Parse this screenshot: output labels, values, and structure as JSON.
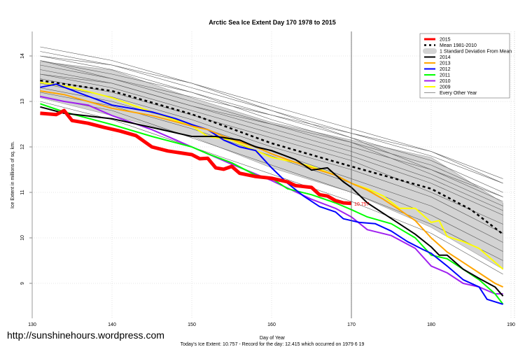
{
  "chart_data": {
    "type": "line",
    "title": "Arctic Sea Ice Extent Day 170 1978 to 2015",
    "xlabel": "Day of Year",
    "ylabel": "Ice Extent in millions of sq. km.",
    "subtitle": "Today's Ice Extent: 10.757  - Record for the day: 12.415 which occurred on 1979 6 19",
    "xlim": [
      130,
      190
    ],
    "ylim": [
      8.3,
      14.5
    ],
    "xticks": [
      130,
      140,
      150,
      160,
      170,
      180,
      190
    ],
    "yticks": [
      9,
      10,
      11,
      12,
      13,
      14
    ],
    "grid": true,
    "legend_position": "top-right",
    "marker_day": 170,
    "end_label": "10.757",
    "sd_band": {
      "name": "1 Standard Deviation From Mean",
      "color": "#d3d3d3",
      "x": [
        131,
        140,
        150,
        160,
        170,
        180,
        189
      ],
      "upper": [
        13.88,
        13.69,
        13.08,
        12.54,
        12.15,
        11.77,
        10.77
      ],
      "lower": [
        13.08,
        12.69,
        12.23,
        11.54,
        11.0,
        10.23,
        9.31
      ]
    },
    "mean": {
      "name": "Mean 1981-2010",
      "color": "#000000",
      "x": [
        131,
        140,
        150,
        160,
        170,
        180,
        185,
        189
      ],
      "y": [
        13.46,
        13.23,
        12.72,
        12.08,
        11.57,
        11.08,
        10.62,
        10.08
      ]
    },
    "other_years": {
      "name": "Every Other Year",
      "color": "#555555",
      "x": [
        131,
        140,
        150,
        160,
        170,
        180,
        189
      ],
      "lines": [
        [
          14.2,
          13.9,
          13.4,
          12.9,
          12.4,
          11.9,
          11.3
        ],
        [
          14.1,
          13.8,
          13.3,
          12.8,
          12.3,
          11.8,
          11.2
        ],
        [
          14.0,
          13.7,
          13.2,
          12.7,
          12.2,
          11.7,
          11.0
        ],
        [
          13.9,
          13.6,
          13.2,
          12.6,
          12.1,
          11.6,
          10.9
        ],
        [
          13.8,
          13.5,
          13.0,
          12.5,
          12.0,
          11.5,
          10.8
        ],
        [
          13.7,
          13.4,
          12.9,
          12.4,
          11.9,
          11.3,
          10.6
        ],
        [
          13.6,
          13.3,
          12.8,
          12.3,
          11.8,
          11.2,
          10.5
        ],
        [
          13.5,
          13.2,
          12.7,
          12.2,
          11.7,
          11.0,
          10.3
        ],
        [
          13.4,
          13.1,
          12.6,
          12.0,
          11.5,
          10.9,
          10.1
        ],
        [
          13.3,
          13.0,
          12.5,
          11.9,
          11.3,
          10.7,
          9.9
        ],
        [
          13.2,
          12.9,
          12.4,
          11.8,
          11.2,
          10.5,
          9.7
        ],
        [
          13.1,
          12.8,
          12.2,
          11.6,
          11.0,
          10.3,
          9.5
        ],
        [
          13.0,
          12.6,
          12.0,
          11.4,
          10.8,
          10.1,
          9.2
        ],
        [
          13.9,
          13.5,
          13.1,
          12.7,
          12.3,
          11.9,
          11.2
        ],
        [
          14.0,
          13.8,
          13.4,
          12.8,
          12.2,
          11.5,
          10.9
        ],
        [
          13.6,
          13.4,
          12.9,
          12.5,
          12.1,
          11.4,
          10.7
        ]
      ]
    },
    "series": [
      {
        "name": "2009",
        "color": "#ffff00",
        "x": [
          131,
          135,
          140,
          145,
          150,
          152,
          155,
          158,
          160,
          163,
          165,
          168,
          170,
          172,
          174,
          176,
          178,
          180,
          181,
          182,
          184,
          186,
          189
        ],
        "y": [
          13.42,
          13.31,
          13.08,
          12.77,
          12.46,
          12.23,
          12.15,
          11.92,
          11.77,
          11.66,
          11.57,
          11.38,
          11.2,
          11.08,
          10.92,
          10.65,
          10.65,
          10.34,
          10.38,
          10.03,
          9.92,
          9.77,
          9.31
        ]
      },
      {
        "name": "2010",
        "color": "#a020f0",
        "x": [
          131,
          134,
          137,
          140,
          145,
          150,
          155,
          160,
          165,
          168,
          170,
          172,
          175,
          178,
          180,
          182,
          184,
          186,
          188,
          189
        ],
        "y": [
          13.11,
          13.0,
          12.92,
          12.69,
          12.38,
          12.0,
          11.62,
          11.26,
          10.85,
          10.65,
          10.46,
          10.18,
          10.05,
          9.77,
          9.38,
          9.23,
          9.0,
          8.92,
          8.77,
          8.77
        ]
      },
      {
        "name": "2011",
        "color": "#00ff00",
        "x": [
          131,
          134,
          140,
          145,
          150,
          152,
          155,
          158,
          160,
          162,
          165,
          168,
          170,
          172,
          175,
          178,
          180,
          182,
          184,
          186,
          188,
          189
        ],
        "y": [
          12.95,
          12.77,
          12.49,
          12.23,
          12.0,
          11.85,
          11.65,
          11.38,
          11.31,
          11.08,
          10.95,
          10.77,
          10.62,
          10.46,
          10.31,
          10.0,
          9.62,
          9.54,
          9.31,
          9.08,
          8.77,
          8.54
        ]
      },
      {
        "name": "2012",
        "color": "#0000ff",
        "x": [
          131,
          133,
          136,
          140,
          145,
          148,
          150,
          152,
          154,
          156,
          158,
          160,
          162,
          164,
          166,
          168,
          169,
          170,
          171,
          173,
          175,
          177,
          179,
          180,
          182,
          184,
          186,
          187,
          189
        ],
        "y": [
          13.31,
          13.38,
          13.18,
          12.92,
          12.77,
          12.62,
          12.49,
          12.38,
          12.15,
          12.0,
          11.92,
          11.54,
          11.2,
          10.92,
          10.69,
          10.57,
          10.42,
          10.38,
          10.34,
          10.31,
          10.15,
          9.92,
          9.74,
          9.66,
          9.38,
          9.08,
          8.92,
          8.65,
          8.54
        ]
      },
      {
        "name": "2013",
        "color": "#ffa500",
        "x": [
          131,
          134,
          140,
          145,
          150,
          152,
          154,
          156,
          158,
          160,
          162,
          165,
          168,
          170,
          172,
          174,
          176,
          178,
          180,
          182,
          184,
          186,
          188,
          189
        ],
        "y": [
          13.23,
          13.15,
          12.85,
          12.69,
          12.46,
          12.38,
          12.23,
          12.11,
          12.0,
          11.85,
          11.72,
          11.54,
          11.38,
          11.2,
          11.05,
          10.85,
          10.62,
          10.38,
          10.0,
          9.69,
          9.46,
          9.23,
          9.0,
          8.92
        ]
      },
      {
        "name": "2014",
        "color": "#000000",
        "x": [
          131,
          134,
          140,
          145,
          150,
          153,
          156,
          158,
          160,
          163,
          165,
          167,
          169,
          170,
          172,
          174,
          176,
          178,
          180,
          181,
          182,
          184,
          186,
          188,
          189
        ],
        "y": [
          12.88,
          12.74,
          12.62,
          12.43,
          12.23,
          12.23,
          12.15,
          12.0,
          11.92,
          11.72,
          11.49,
          11.54,
          11.23,
          11.11,
          10.77,
          10.54,
          10.31,
          10.08,
          9.8,
          9.62,
          9.62,
          9.31,
          9.11,
          8.92,
          8.72
        ]
      },
      {
        "name": "2015",
        "color": "#ff0000",
        "x": [
          131,
          133,
          134,
          135,
          137,
          139,
          141,
          143,
          145,
          147,
          150,
          151,
          152,
          153,
          154,
          155,
          156,
          158,
          160,
          162,
          163,
          165,
          166,
          167,
          168,
          169,
          170
        ],
        "y": [
          12.74,
          12.71,
          12.8,
          12.58,
          12.52,
          12.43,
          12.35,
          12.25,
          12.0,
          11.91,
          11.83,
          11.74,
          11.75,
          11.54,
          11.51,
          11.57,
          11.42,
          11.35,
          11.31,
          11.23,
          11.15,
          11.11,
          10.95,
          10.92,
          10.82,
          10.77,
          10.757
        ]
      }
    ],
    "legend": [
      {
        "label": "2015",
        "color": "#ff0000",
        "style": "thick"
      },
      {
        "label": "Mean 1981-2010",
        "color": "#000000",
        "style": "dashed"
      },
      {
        "label": "1 Standard Deviation From Mean",
        "color": "#d3d3d3",
        "style": "band"
      },
      {
        "label": "2014",
        "color": "#000000",
        "style": "line"
      },
      {
        "label": "2013",
        "color": "#ffa500",
        "style": "line"
      },
      {
        "label": "2012",
        "color": "#0000ff",
        "style": "line"
      },
      {
        "label": "2011",
        "color": "#00ff00",
        "style": "line"
      },
      {
        "label": "2010",
        "color": "#a020f0",
        "style": "line"
      },
      {
        "label": "2009",
        "color": "#ffff00",
        "style": "line"
      },
      {
        "label": "Every Other Year",
        "color": "#777777",
        "style": "thin"
      }
    ]
  },
  "watermark": "http://sunshinehours.wordpress.com"
}
